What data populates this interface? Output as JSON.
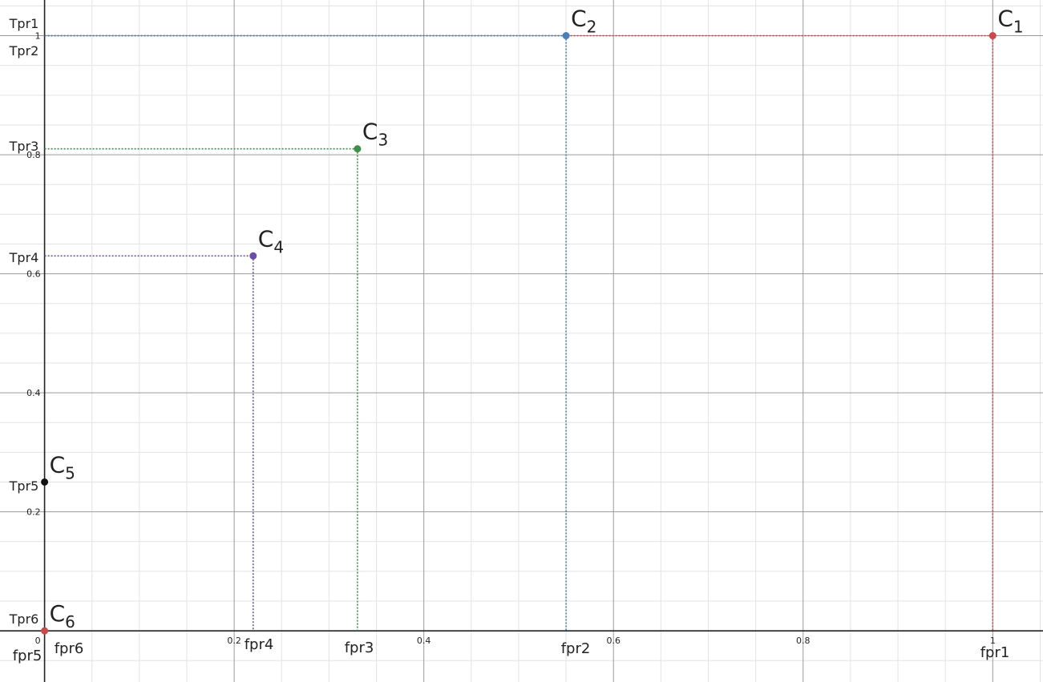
{
  "chart_data": {
    "type": "scatter",
    "title": "",
    "xlabel": "",
    "ylabel": "",
    "xlim": [
      -0.047,
      1.053
    ],
    "ylim": [
      -0.086,
      1.06
    ],
    "grid": true,
    "x_ticks": [
      "0.2",
      "0.4",
      "0.6",
      "0.8",
      "1"
    ],
    "y_ticks": [
      "0.2",
      "0.4",
      "0.6",
      "0.8",
      "1"
    ],
    "origin_label": "0",
    "colors": {
      "red": "#c94a4a",
      "blue": "#4a7fb8",
      "green": "#3f8e4a",
      "purple": "#6b4ea8",
      "black": "#111111"
    },
    "points": [
      {
        "name": "C1",
        "label_main": "C",
        "label_sub": "1",
        "x": 1.0,
        "y": 1.0,
        "color": "red",
        "xtick": "fpr1",
        "ytick": "Tpr1",
        "drop_lines": true
      },
      {
        "name": "C2",
        "label_main": "C",
        "label_sub": "2",
        "x": 0.55,
        "y": 1.0,
        "color": "blue",
        "xtick": "fpr2",
        "ytick": "Tpr2",
        "drop_lines": true
      },
      {
        "name": "C3",
        "label_main": "C",
        "label_sub": "3",
        "x": 0.33,
        "y": 0.81,
        "color": "green",
        "xtick": "fpr3",
        "ytick": "Tpr3",
        "drop_lines": true
      },
      {
        "name": "C4",
        "label_main": "C",
        "label_sub": "4",
        "x": 0.22,
        "y": 0.63,
        "color": "purple",
        "xtick": "fpr4",
        "ytick": "Tpr4",
        "drop_lines": true
      },
      {
        "name": "C5",
        "label_main": "C",
        "label_sub": "5",
        "x": 0.0,
        "y": 0.25,
        "color": "black",
        "xtick": "fpr5",
        "ytick": "Tpr5",
        "drop_lines": false
      },
      {
        "name": "C6",
        "label_main": "C",
        "label_sub": "6",
        "x": 0.0,
        "y": 0.0,
        "color": "red",
        "xtick": "fpr6",
        "ytick": "Tpr6",
        "drop_lines": false
      }
    ]
  }
}
